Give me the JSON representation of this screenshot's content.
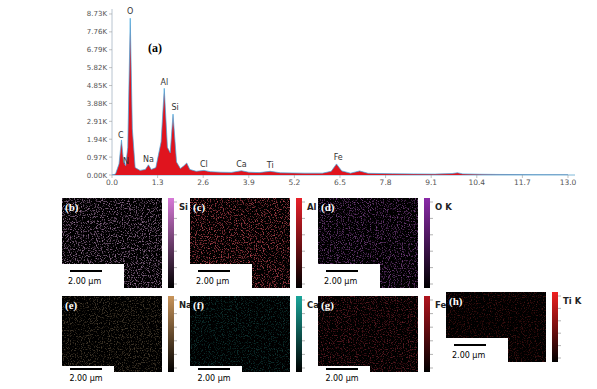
{
  "chart_data": {
    "type": "area",
    "title": "(a)",
    "color": "#e0141e",
    "x": [
      0.0,
      0.1,
      0.2,
      0.27,
      0.33,
      0.39,
      0.45,
      0.52,
      0.58,
      0.66,
      0.8,
      0.95,
      1.04,
      1.12,
      1.25,
      1.4,
      1.49,
      1.58,
      1.66,
      1.74,
      1.84,
      1.95,
      2.05,
      2.13,
      2.22,
      2.4,
      2.62,
      2.8,
      3.1,
      3.4,
      3.69,
      3.9,
      4.2,
      4.51,
      4.8,
      5.5,
      6.0,
      6.25,
      6.4,
      6.55,
      6.8,
      7.06,
      7.3,
      8.0,
      8.6,
      9.2,
      9.7,
      9.85,
      10.0,
      10.5,
      11.0,
      12.0,
      13.0
    ],
    "values": [
      0,
      50,
      600,
      1900,
      700,
      500,
      1500,
      8500,
      2500,
      400,
      250,
      300,
      550,
      300,
      400,
      1800,
      4700,
      1500,
      1200,
      3300,
      700,
      350,
      500,
      650,
      300,
      200,
      250,
      180,
      150,
      140,
      230,
      150,
      130,
      200,
      120,
      100,
      100,
      200,
      600,
      220,
      100,
      220,
      90,
      70,
      60,
      50,
      80,
      120,
      60,
      40,
      30,
      20,
      15
    ],
    "xlim": [
      0,
      13.2
    ],
    "ylim": [
      0,
      9000
    ],
    "xticks": [
      {
        "value": 0,
        "label": "0.0"
      },
      1.3,
      2.6,
      3.9,
      5.2,
      6.5,
      7.8,
      9.1,
      10.4,
      11.7,
      {
        "value": 13,
        "label": "13.0"
      }
    ],
    "yticks": [
      {
        "value": 0,
        "label": "0.00K"
      },
      {
        "value": 970,
        "label": "0.97K"
      },
      {
        "value": 1940,
        "label": "1.94K"
      },
      {
        "value": 2910,
        "label": "2.91K"
      },
      {
        "value": 3880,
        "label": "3.88K"
      },
      {
        "value": 4850,
        "label": "4.85K"
      },
      {
        "value": 5820,
        "label": "5.82K"
      },
      {
        "value": 6790,
        "label": "6.79K"
      },
      {
        "value": 7760,
        "label": "7.76K"
      },
      {
        "value": 8730,
        "label": "8.73K"
      }
    ],
    "grid": false,
    "annotations": [
      {
        "text": "C",
        "x": 0.25,
        "y": 2000
      },
      {
        "text": "O",
        "x": 0.52,
        "y": 8750
      },
      {
        "text": "N",
        "x": 0.4,
        "y": 600
      },
      {
        "text": "Na",
        "x": 1.04,
        "y": 700
      },
      {
        "text": "Al",
        "x": 1.49,
        "y": 4900
      },
      {
        "text": "Si",
        "x": 1.8,
        "y": 3500
      },
      {
        "text": "Cl",
        "x": 2.62,
        "y": 450
      },
      {
        "text": "Ca",
        "x": 3.69,
        "y": 420
      },
      {
        "text": "Ti",
        "x": 4.51,
        "y": 400
      },
      {
        "text": "Fe",
        "x": 6.45,
        "y": 800
      }
    ]
  },
  "maps": [
    {
      "label": "(b)",
      "element": "Si K",
      "scale_bar": "2.00 µm",
      "color": "#d77ad7"
    },
    {
      "label": "(c)",
      "element": "Al K",
      "scale_bar": "2.00 µm",
      "color": "#e8202a"
    },
    {
      "label": "(d)",
      "element": "O K",
      "scale_bar": "2.00 µm",
      "color": "#8a2aa8"
    },
    {
      "label": "(e)",
      "element": "Na K",
      "scale_bar": "2.00 µm",
      "color": "#c8945a"
    },
    {
      "label": "(f)",
      "element": "Ca K",
      "scale_bar": "2.00 µm",
      "color": "#1aa59a"
    },
    {
      "label": "(g)",
      "element": "Fe K",
      "scale_bar": "2.00 µm",
      "color": "#b0141e"
    },
    {
      "label": "(h)",
      "element": "Ti K",
      "scale_bar": "2.00 µm",
      "color": "#f02020"
    }
  ]
}
